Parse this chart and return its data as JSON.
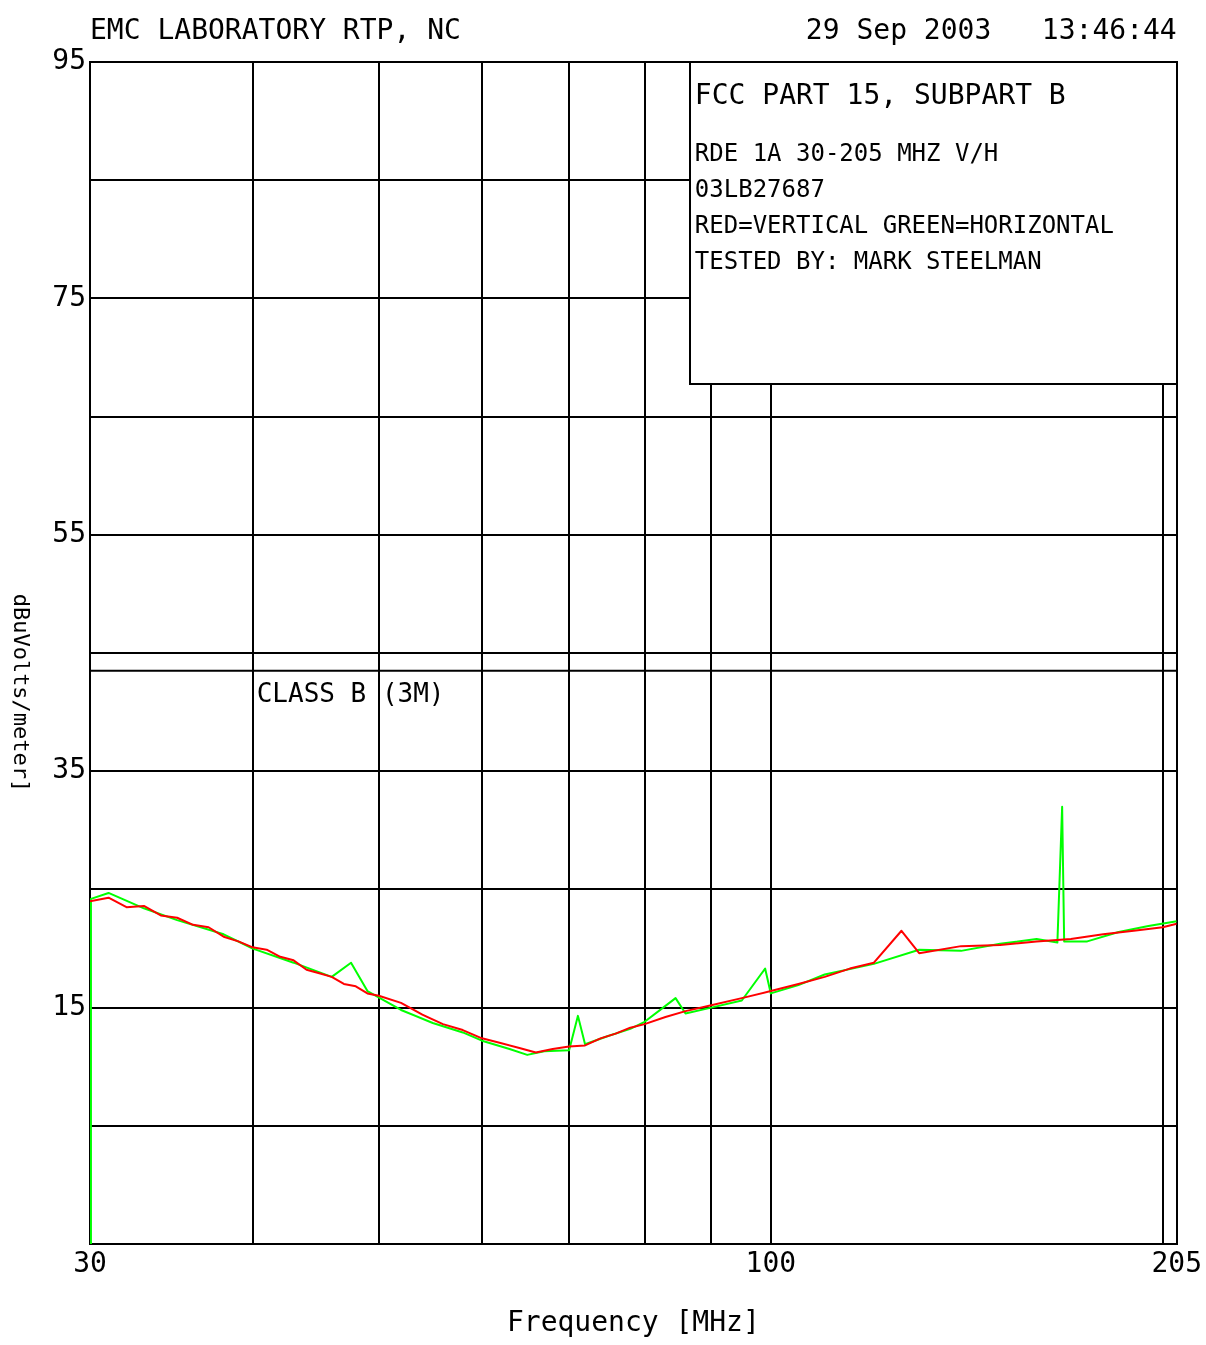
{
  "chart_data": {
    "type": "line",
    "title": "EMC LABORATORY RTP, NC",
    "subtitle": "29 Sep 2003   13:46:44",
    "xlabel": "Frequency [MHz]",
    "ylabel": "dBuVolts/meter]",
    "annotations": [
      "FCC PART 15, SUBPART B",
      "RDE 1A 30-205 MHZ V/H",
      "03LB27687",
      "RED=VERTICAL GREEN=HORIZONTAL",
      "TESTED BY: MARK STEELMAN"
    ],
    "log": "x",
    "xlim": [
      30,
      205
    ],
    "xticks": [
      30,
      {
        "value": 40,
        "label": null
      },
      {
        "value": 50,
        "label": null
      },
      {
        "value": 60,
        "label": null
      },
      {
        "value": 70,
        "label": null
      },
      {
        "value": 80,
        "label": null
      },
      {
        "value": 90,
        "label": null
      },
      100,
      {
        "value": 200,
        "label": null
      },
      205
    ],
    "ylim": [
      -5,
      95
    ],
    "yticks": [
      {
        "value": 5,
        "label": null
      },
      15,
      {
        "value": 25,
        "label": null
      },
      35,
      {
        "value": 45,
        "label": null
      },
      55,
      {
        "value": 65,
        "label": null
      },
      75,
      {
        "value": 85,
        "label": null
      },
      95
    ],
    "grid": true,
    "legend": false,
    "marker": "none",
    "line_style": "solid",
    "series": [
      {
        "color": "#ff0000",
        "x": [
          30,
          31,
          32,
          33,
          34,
          35,
          36,
          37,
          38,
          39,
          40,
          41,
          42,
          43,
          44,
          45,
          46,
          47,
          48,
          49,
          50,
          52,
          54,
          56,
          58,
          60,
          62,
          64,
          66,
          68,
          70,
          72,
          74,
          76,
          78,
          80,
          83,
          86,
          90,
          95,
          100,
          105,
          110,
          115,
          120,
          126,
          130,
          140,
          150,
          160,
          170,
          180,
          190,
          200,
          205
        ],
        "values": [
          24.0,
          24.3,
          23.5,
          23.6,
          22.8,
          22.6,
          22.0,
          21.8,
          21.0,
          20.6,
          20.1,
          19.9,
          19.3,
          19.0,
          18.2,
          17.9,
          17.6,
          17.0,
          16.8,
          16.2,
          16.0,
          15.4,
          14.4,
          13.6,
          13.1,
          12.4,
          12.0,
          11.6,
          11.2,
          11.5,
          11.7,
          11.8,
          12.4,
          12.8,
          13.3,
          13.6,
          14.2,
          14.7,
          15.2,
          15.8,
          16.4,
          17.0,
          17.6,
          18.3,
          18.8,
          21.5,
          19.6,
          20.2,
          20.3,
          20.6,
          20.8,
          21.2,
          21.5,
          21.8,
          22.1
        ]
      },
      {
        "color": "#00ff00",
        "x": [
          30,
          30.05,
          31,
          33,
          35,
          38,
          40,
          43,
          46,
          47.6,
          49,
          52,
          55,
          58,
          60,
          63,
          65,
          67,
          70,
          71.1,
          72,
          75,
          78,
          80,
          84.5,
          86,
          90,
          95,
          99,
          100,
          105,
          110,
          120,
          130,
          140,
          150,
          160,
          166,
          167.4,
          168,
          175,
          185,
          195,
          205
        ],
        "values": [
          -5,
          24.2,
          24.7,
          23.4,
          22.4,
          21.2,
          20.0,
          18.8,
          17.6,
          18.8,
          16.4,
          14.8,
          13.7,
          12.9,
          12.2,
          11.5,
          11.0,
          11.3,
          11.4,
          14.3,
          11.9,
          12.6,
          13.2,
          13.8,
          15.8,
          14.5,
          15.0,
          15.6,
          18.3,
          16.2,
          16.9,
          17.8,
          18.7,
          19.9,
          19.8,
          20.4,
          20.8,
          20.5,
          32.0,
          20.6,
          20.6,
          21.4,
          21.9,
          22.3
        ]
      },
      {
        "type": "step",
        "name": "CLASS B (3M)",
        "color": "#000000",
        "x": [
          30,
          88,
          205
        ],
        "values": [
          40,
          43.5,
          43.5
        ]
      }
    ]
  }
}
